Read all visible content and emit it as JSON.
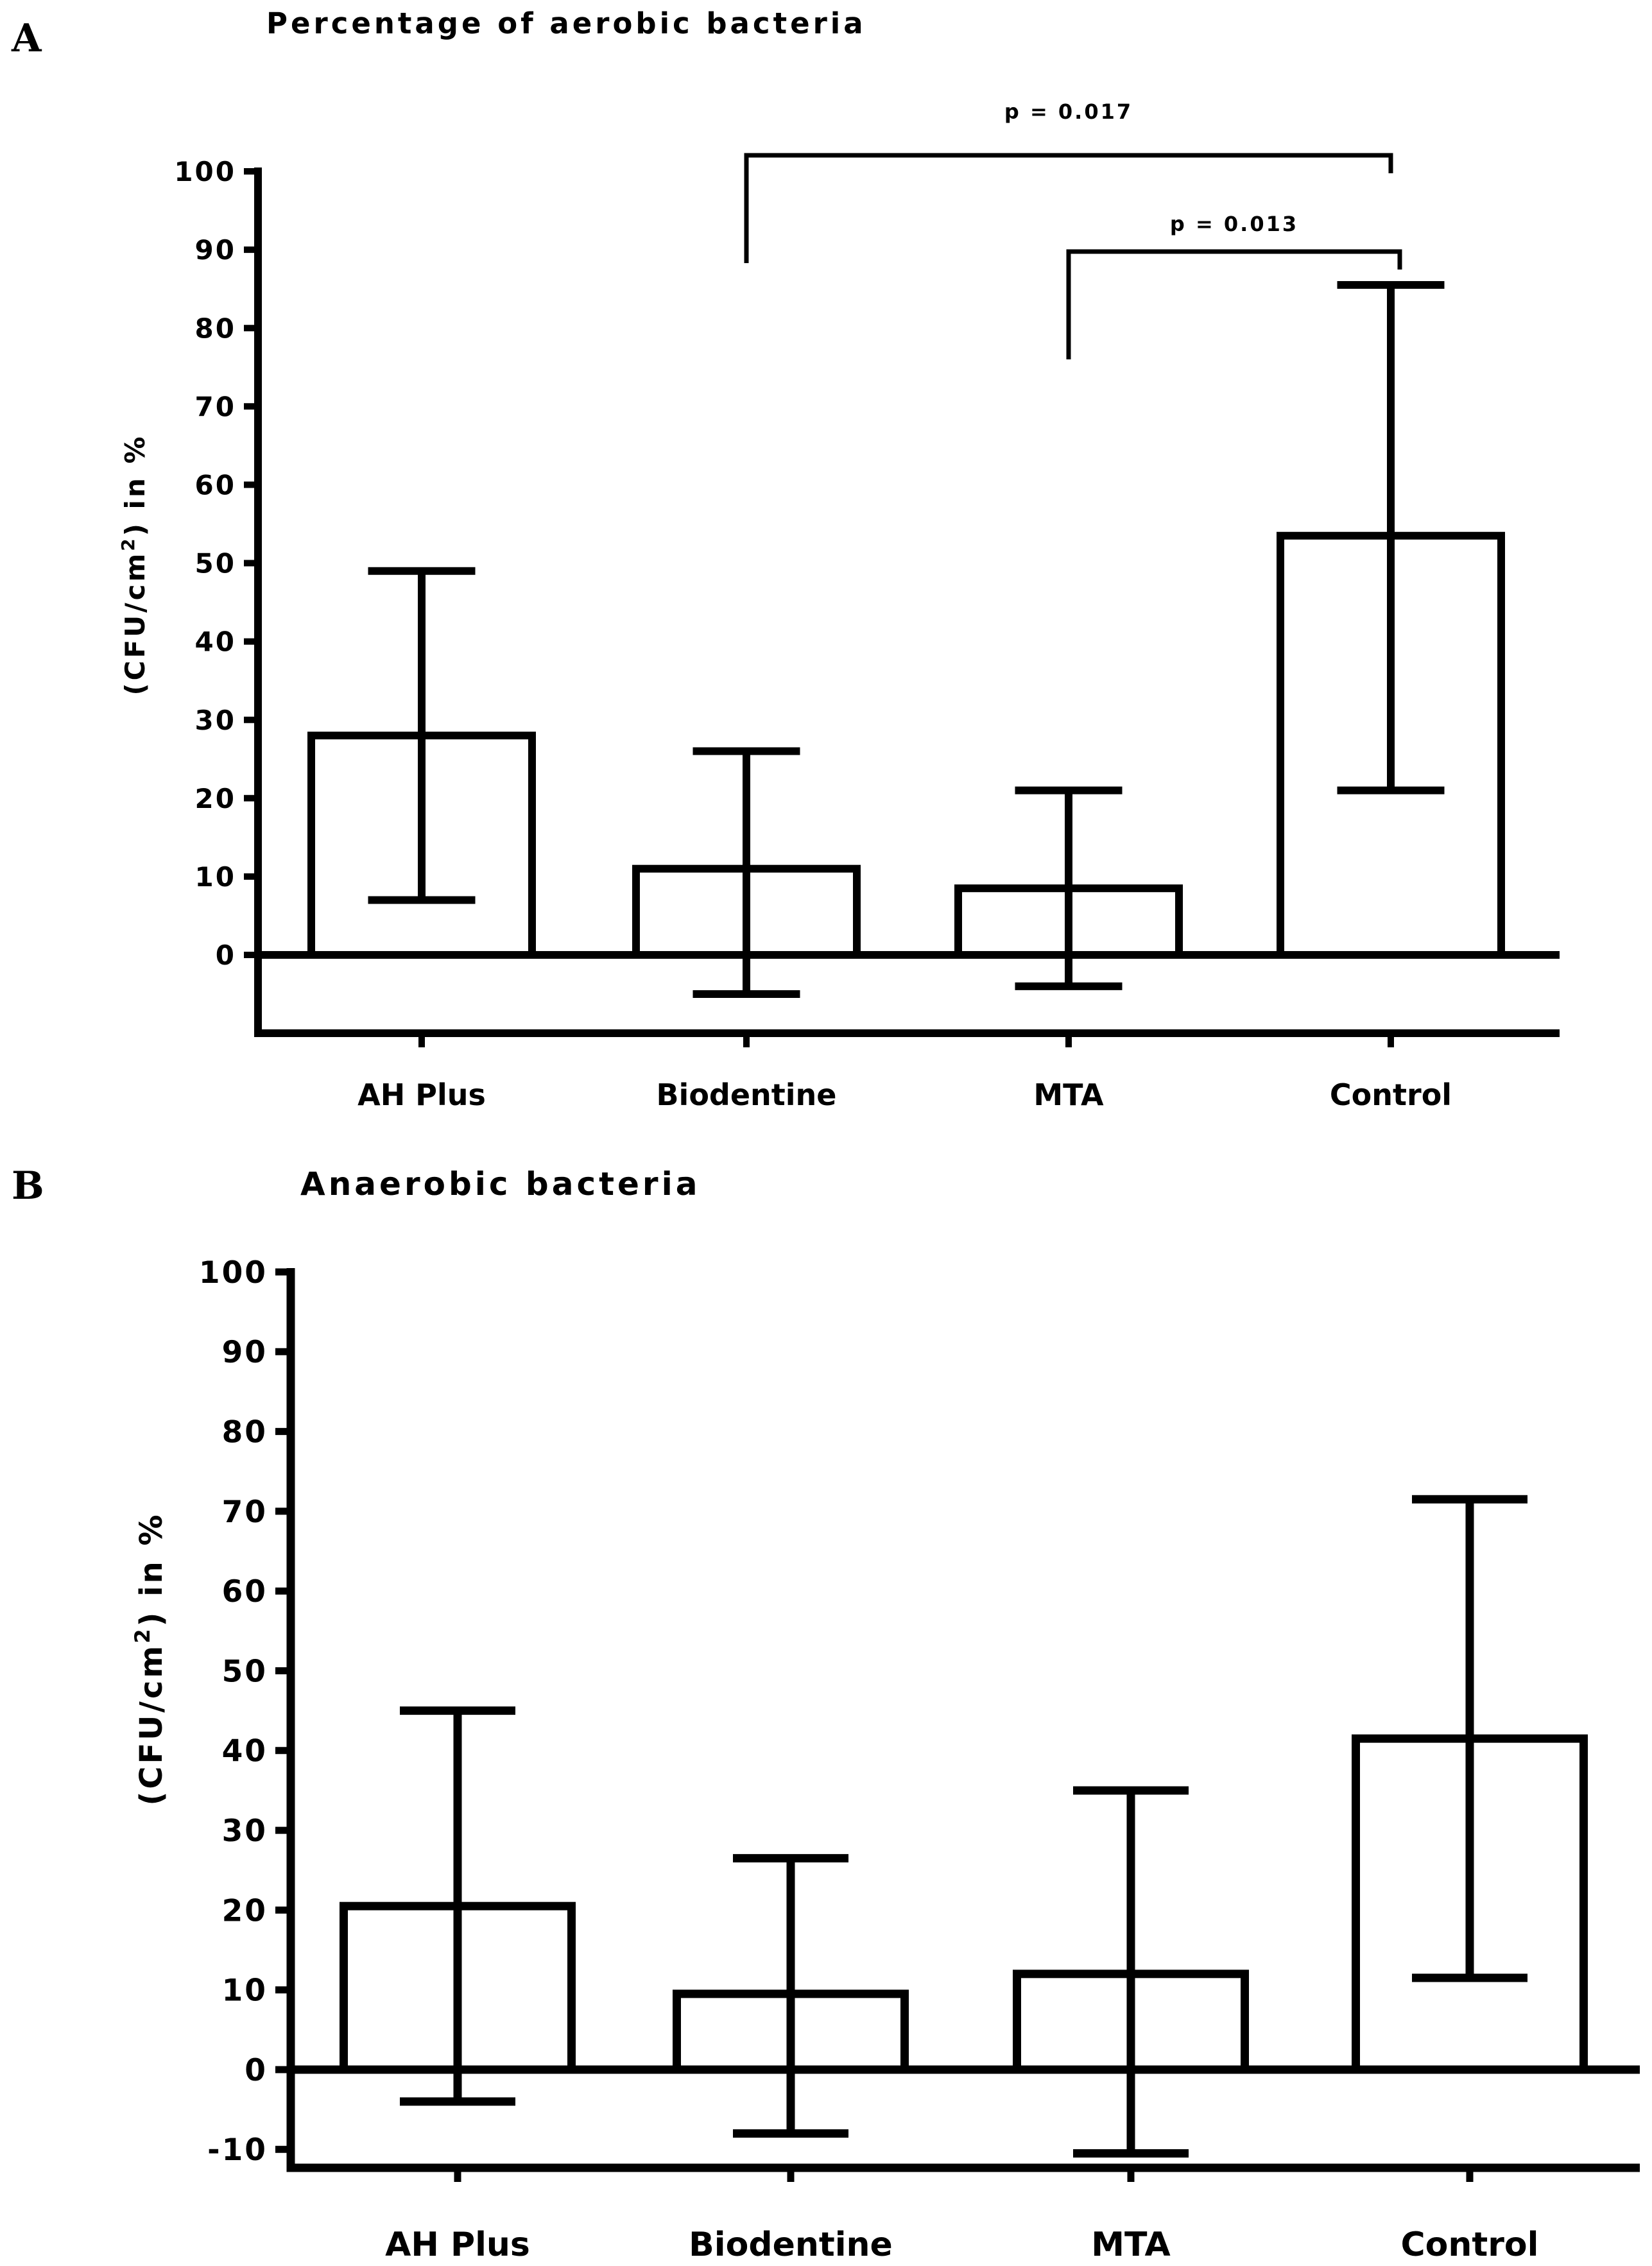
{
  "chart_data": [
    {
      "panel": "A",
      "type": "bar",
      "title": "Percentage of aerobic bacteria",
      "ylabel_prefix": "(CFU/cm",
      "ylabel_sup": "2",
      "ylabel_suffix": ") in %",
      "categories": [
        "AH Plus",
        "Biodentine",
        "MTA",
        "Control"
      ],
      "values": [
        28,
        11,
        8.5,
        53.5
      ],
      "error_low": [
        7,
        -5,
        -4,
        21
      ],
      "error_high": [
        49,
        26,
        21,
        85.5
      ],
      "ylim": [
        -10,
        100
      ],
      "yticks": [
        "100",
        "90",
        "80",
        "70",
        "60",
        "50",
        "40",
        "30",
        "20",
        "10",
        "0"
      ],
      "significance": [
        {
          "from": "Biodentine",
          "to": "Control",
          "label": "p = 0.017"
        },
        {
          "from": "MTA",
          "to": "Control",
          "label": "p = 0.013"
        }
      ]
    },
    {
      "panel": "B",
      "type": "bar",
      "title": "Anaerobic bacteria",
      "ylabel_prefix": "(CFU/cm",
      "ylabel_sup": "2",
      "ylabel_suffix": ") in %",
      "categories": [
        "AH Plus",
        "Biodentine",
        "MTA",
        "Control"
      ],
      "values": [
        20.5,
        9.5,
        12,
        41.5
      ],
      "error_low": [
        -4,
        -8,
        -10.5,
        11.5
      ],
      "error_high": [
        45,
        26.5,
        35,
        71.5
      ],
      "ylim": [
        -12,
        100
      ],
      "yticks": [
        "100",
        "90",
        "80",
        "70",
        "60",
        "50",
        "40",
        "30",
        "20",
        "10",
        "0",
        "-10"
      ],
      "significance": []
    }
  ]
}
